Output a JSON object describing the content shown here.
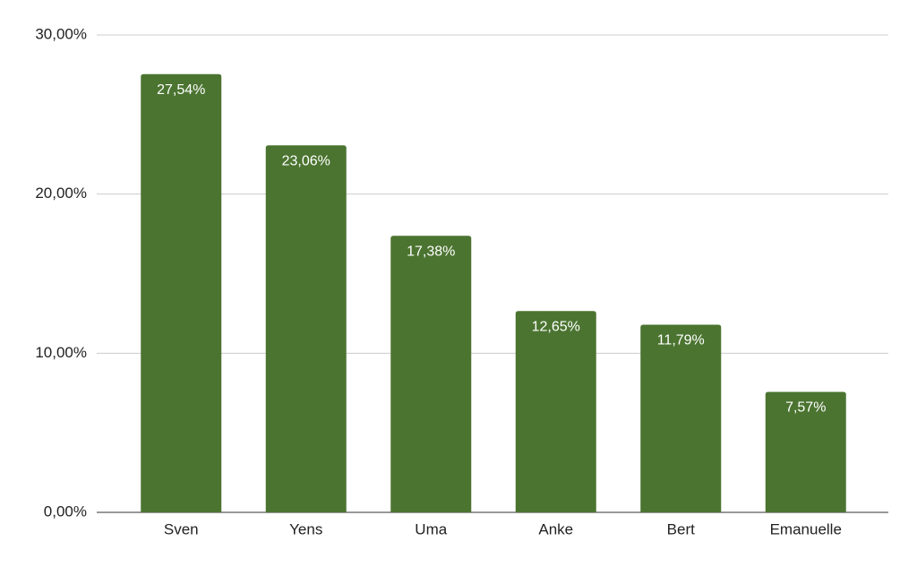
{
  "chart_data": {
    "type": "bar",
    "categories": [
      "Sven",
      "Yens",
      "Uma",
      "Anke",
      "Bert",
      "Emanuelle"
    ],
    "values": [
      27.54,
      23.06,
      17.38,
      12.65,
      11.79,
      7.57
    ],
    "value_labels": [
      "27,54%",
      "23,06%",
      "17,38%",
      "12,65%",
      "11,79%",
      "7,57%"
    ],
    "color": "#4b7430",
    "ylim": [
      0,
      30
    ],
    "yticks": [
      {
        "value": 0,
        "label": "0,00%"
      },
      {
        "value": 10,
        "label": "10,00%"
      },
      {
        "value": 20,
        "label": "20,00%"
      },
      {
        "value": 30,
        "label": "30,00%"
      }
    ],
    "grid": true
  }
}
